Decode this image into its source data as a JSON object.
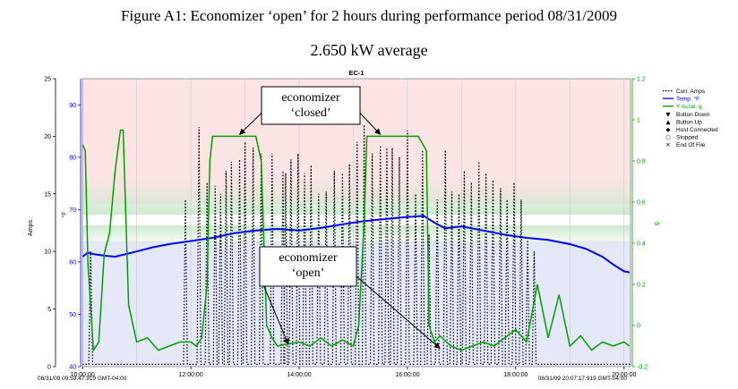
{
  "figure": {
    "title": "Figure A1: Economizer ‘open’ for 2 hours during performance period 08/31/2009",
    "subtitle": "2.650 kW average"
  },
  "chart_data": {
    "type": "line",
    "title": "EC-1",
    "xlabel": "",
    "x_ticks": [
      "10:00:00",
      "12:00:00",
      "14:00:00",
      "16:00:00",
      "18:00:00",
      "20:00:00"
    ],
    "x_range_hours": [
      9.997,
      20.12
    ],
    "x_start_label": "08/31/09 09:59:47.919 GMT-04:00",
    "x_end_label": "08/31/09 20:07:17.919 GMT-04:00",
    "axes": {
      "amps": {
        "label": "Amps",
        "ylim": [
          0,
          25
        ],
        "ticks": [
          0,
          5,
          10,
          15,
          20,
          25
        ],
        "color": "#000000"
      },
      "temp": {
        "label": "°F",
        "ylim": [
          40,
          95
        ],
        "ticks": [
          40,
          50,
          60,
          70,
          80,
          90
        ],
        "color": "#0000ff"
      },
      "accel": {
        "label": "g",
        "ylim": [
          -0.2,
          1.2
        ],
        "ticks": [
          -0.2,
          0,
          0.2,
          0.4,
          0.6,
          0.8,
          1,
          1.2
        ],
        "color": "#00a000"
      }
    },
    "bands": [
      {
        "axis": "temp",
        "from": 71,
        "to": 95,
        "color": "#fde4e4"
      },
      {
        "axis": "temp",
        "from": 40,
        "to": 64,
        "color": "#e4e8f8"
      }
    ],
    "band_gradients": [
      {
        "axis": "temp",
        "from": 69,
        "to": 76,
        "color": "#cfe9cf"
      },
      {
        "axis": "temp",
        "from": 63,
        "to": 67,
        "color": "#cfe9cf"
      }
    ],
    "legend": {
      "placement": "right",
      "entries": [
        {
          "label": "Curr. Amps",
          "symbol": "dotted",
          "color": "#000000"
        },
        {
          "label": "Temp. °F",
          "symbol": "line",
          "color": "#0000ff"
        },
        {
          "label": "Y Accel. g",
          "symbol": "line",
          "color": "#00a000"
        },
        {
          "label": "Button Down",
          "symbol": "▼",
          "color": "#000000"
        },
        {
          "label": "Button Up",
          "symbol": "▲",
          "color": "#000000"
        },
        {
          "label": "Host Connected",
          "symbol": "◆",
          "color": "#000000"
        },
        {
          "label": "Stopped",
          "symbol": "○",
          "color": "#000000"
        },
        {
          "label": "End Of File",
          "symbol": "✕",
          "color": "#000000"
        }
      ]
    },
    "series": [
      {
        "name": "Temp. °F",
        "axis": "temp",
        "color": "#0000ff",
        "style": "solid",
        "x": [
          10.0,
          10.1,
          10.2,
          10.4,
          10.6,
          10.8,
          11.0,
          11.3,
          11.6,
          12.0,
          12.4,
          12.8,
          13.2,
          13.6,
          14.0,
          14.4,
          14.8,
          15.2,
          15.6,
          16.0,
          16.3,
          16.5,
          16.7,
          17.0,
          17.4,
          17.8,
          18.2,
          18.6,
          19.0,
          19.3,
          19.6,
          19.8,
          20.0,
          20.1
        ],
        "y": [
          61.0,
          61.8,
          61.5,
          61.2,
          61.0,
          61.5,
          62.0,
          62.8,
          63.4,
          64.0,
          64.6,
          65.5,
          66.0,
          66.3,
          66.0,
          66.5,
          67.2,
          67.8,
          68.2,
          68.6,
          68.8,
          67.5,
          66.4,
          66.8,
          66.0,
          65.2,
          64.6,
          64.2,
          63.4,
          62.5,
          61.0,
          59.5,
          58.2,
          58.0
        ]
      },
      {
        "name": "Y Accel. g",
        "axis": "accel",
        "color": "#00a000",
        "style": "solid",
        "x": [
          10.0,
          10.05,
          10.1,
          10.2,
          10.3,
          10.4,
          10.5,
          10.6,
          10.7,
          10.75,
          10.85,
          11.0,
          11.2,
          11.4,
          11.6,
          11.8,
          12.0,
          12.1,
          12.2,
          12.3,
          12.35,
          12.4,
          12.6,
          12.8,
          13.0,
          13.2,
          13.3,
          13.4,
          13.5,
          13.6,
          13.8,
          14.0,
          14.2,
          14.4,
          14.6,
          14.8,
          15.0,
          15.1,
          15.2,
          15.25,
          15.4,
          15.6,
          15.8,
          16.0,
          16.2,
          16.35,
          16.4,
          16.5,
          16.6,
          16.8,
          17.0,
          17.2,
          17.4,
          17.6,
          17.8,
          18.0,
          18.2,
          18.4,
          18.6,
          18.8,
          19.0,
          19.2,
          19.4,
          19.6,
          19.8,
          20.0,
          20.1
        ],
        "y": [
          0.88,
          0.85,
          0.3,
          -0.12,
          -0.08,
          0.35,
          0.45,
          0.75,
          0.95,
          0.95,
          0.1,
          -0.08,
          -0.06,
          -0.12,
          -0.1,
          -0.08,
          -0.08,
          -0.1,
          -0.06,
          0.2,
          0.8,
          0.92,
          0.92,
          0.92,
          0.92,
          0.92,
          0.8,
          0.0,
          -0.06,
          -0.1,
          -0.09,
          -0.08,
          -0.1,
          -0.06,
          -0.1,
          -0.07,
          -0.1,
          0.0,
          0.5,
          0.92,
          0.92,
          0.92,
          0.92,
          0.92,
          0.92,
          0.85,
          0.0,
          -0.08,
          -0.05,
          -0.1,
          -0.12,
          -0.1,
          -0.08,
          -0.1,
          -0.06,
          -0.02,
          -0.08,
          0.2,
          -0.06,
          0.15,
          -0.1,
          -0.05,
          -0.12,
          -0.08,
          -0.1,
          -0.08,
          -0.1
        ]
      }
    ],
    "amps_series": {
      "name": "Curr. Amps",
      "axis": "amps",
      "color": "#000000",
      "style": "dotted",
      "baseline": 0.2,
      "spikes": [
        [
          10.15,
          10.0
        ],
        [
          11.9,
          14.5
        ],
        [
          12.15,
          20.8
        ],
        [
          12.3,
          16.0
        ],
        [
          12.45,
          15.7
        ],
        [
          12.55,
          15.0
        ],
        [
          12.65,
          17.0
        ],
        [
          12.75,
          17.8
        ],
        [
          12.9,
          18.0
        ],
        [
          13.0,
          19.5
        ],
        [
          13.15,
          19.0
        ],
        [
          13.3,
          18.5
        ],
        [
          13.5,
          18.5
        ],
        [
          13.7,
          17.0
        ],
        [
          13.75,
          16.8
        ],
        [
          13.85,
          18.0
        ],
        [
          13.98,
          18.5
        ],
        [
          14.1,
          16.8
        ],
        [
          14.22,
          17.5
        ],
        [
          14.36,
          15.0
        ],
        [
          14.5,
          15.2
        ],
        [
          14.65,
          17.0
        ],
        [
          14.8,
          16.8
        ],
        [
          14.93,
          17.6
        ],
        [
          15.07,
          19.5
        ],
        [
          15.2,
          21.0
        ],
        [
          15.35,
          18.5
        ],
        [
          15.5,
          19.2
        ],
        [
          15.62,
          19.0
        ],
        [
          15.72,
          19.0
        ],
        [
          15.85,
          18.2
        ],
        [
          16.0,
          20.5
        ],
        [
          16.15,
          15.0
        ],
        [
          16.28,
          18.8
        ],
        [
          16.4,
          11.5
        ],
        [
          16.55,
          14.5
        ],
        [
          16.7,
          18.8
        ],
        [
          16.82,
          15.2
        ],
        [
          16.95,
          15.0
        ],
        [
          17.05,
          17.0
        ],
        [
          17.18,
          16.0
        ],
        [
          17.32,
          17.8
        ],
        [
          17.45,
          16.8
        ],
        [
          17.58,
          16.2
        ],
        [
          17.72,
          15.5
        ],
        [
          17.84,
          14.5
        ],
        [
          17.97,
          16.0
        ],
        [
          18.1,
          14.5
        ],
        [
          18.22,
          11.0
        ],
        [
          18.34,
          10.0
        ]
      ]
    },
    "annotations": [
      {
        "text": [
          "economizer",
          "‘closed’"
        ],
        "targets": [
          [
            12.9,
            0.92
          ],
          [
            15.5,
            0.92
          ]
        ],
        "target_axis": "accel"
      },
      {
        "text": [
          "economizer",
          "‘open’"
        ],
        "targets": [
          [
            13.8,
            -0.1
          ],
          [
            16.6,
            -0.12
          ]
        ],
        "target_axis": "accel"
      }
    ]
  }
}
